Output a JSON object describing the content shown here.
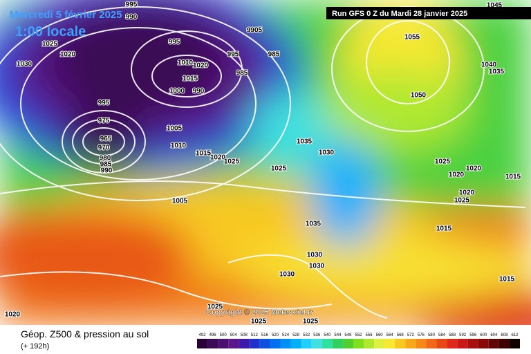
{
  "header": {
    "date": "Mercredi 5 février 2025",
    "time": "1:00 locale",
    "run": "Run GFS 0 Z du Mardi 28 janvier 2025"
  },
  "footer": {
    "title": "Géop. Z500 & pression au sol",
    "lead": "(+ 192h)",
    "copyright": "Copyright © 2025 Meteociel.fr"
  },
  "scale": {
    "labels": [
      492,
      496,
      500,
      504,
      508,
      512,
      516,
      520,
      524,
      528,
      532,
      536,
      540,
      544,
      548,
      552,
      556,
      560,
      564,
      568,
      572,
      576,
      580,
      584,
      588,
      592,
      596,
      600,
      604,
      608,
      612
    ],
    "colors": [
      "#2b0038",
      "#3a0a55",
      "#4b0f70",
      "#5c158a",
      "#3d1aa8",
      "#2030c8",
      "#1050e0",
      "#0070f0",
      "#0090f8",
      "#00b0ff",
      "#20d0ff",
      "#40e0e0",
      "#30e0a0",
      "#30d060",
      "#50d030",
      "#80e020",
      "#b0e830",
      "#e0f040",
      "#f8e830",
      "#f8c820",
      "#f8a818",
      "#f88818",
      "#f06818",
      "#e84818",
      "#e02818",
      "#c81818",
      "#a81010",
      "#880808",
      "#600808",
      "#400000",
      "#100000"
    ]
  },
  "isobars": [
    995,
    990,
    995,
    9905,
    1025,
    1020,
    1030,
    995,
    985,
    1010,
    1020,
    1015,
    1000,
    990,
    985,
    995,
    975,
    965,
    970,
    980,
    985,
    990,
    1005,
    1010,
    1015,
    1020,
    1025,
    1025,
    1035,
    1030,
    1005,
    1035,
    1030,
    1030,
    1030,
    1025,
    1025,
    1025,
    1020,
    1055,
    1050,
    1040,
    1035,
    1045,
    1025,
    1020,
    1020,
    1020,
    1025,
    1015,
    1015,
    1015
  ]
}
